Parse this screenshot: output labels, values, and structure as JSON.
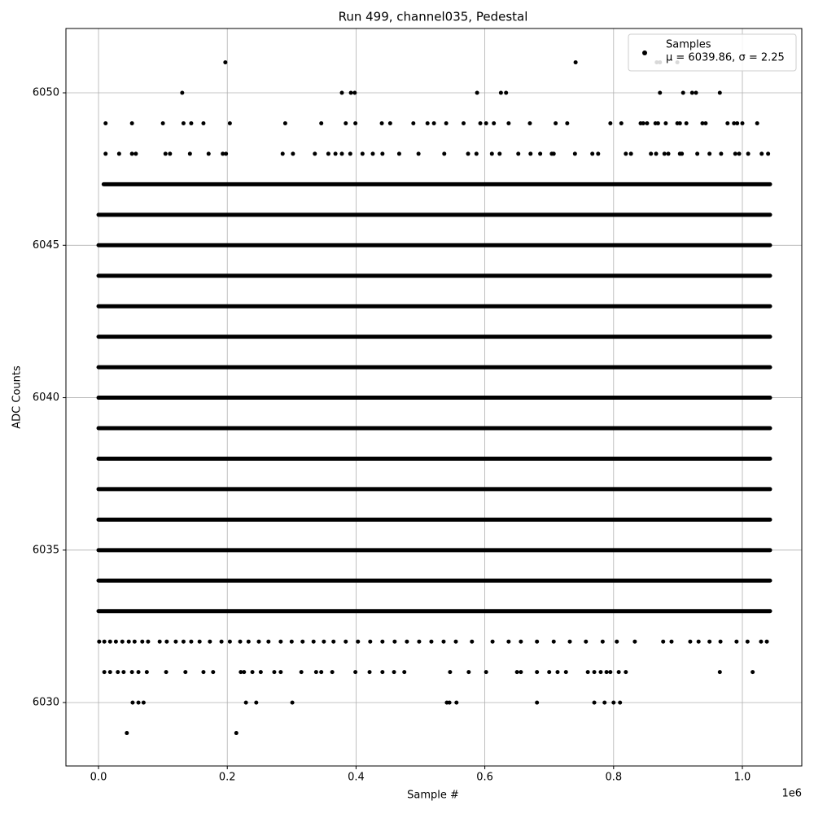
{
  "chart_data": {
    "type": "scatter",
    "title": "Run 499, channel035, Pedestal",
    "xlabel": "Sample #",
    "ylabel": "ADC Counts",
    "x_offset_label": "1e6",
    "xlim": [
      -0.0506,
      1.0923
    ],
    "ylim": [
      6027.92,
      6052.11
    ],
    "xticks": [
      {
        "value": 0,
        "label": "0.0"
      },
      0.2,
      0.4,
      0.6,
      0.8,
      {
        "value": 1,
        "label": "1.0"
      }
    ],
    "yticks": [
      6030,
      6035,
      6040,
      6045,
      6050
    ],
    "grid": true,
    "legend": "upper right",
    "series": [
      {
        "name": "Samples",
        "stats_label": "μ = 6039.86, σ = 2.25",
        "color": "#000000",
        "bands": [
          {
            "y": 6047,
            "x": [
              0.008,
              1.043
            ]
          },
          {
            "y": 6046,
            "x": [
              0,
              1.043
            ]
          },
          {
            "y": 6045,
            "x": [
              0,
              1.043
            ]
          },
          {
            "y": 6044,
            "x": [
              0,
              1.043
            ]
          },
          {
            "y": 6043,
            "x": [
              0,
              1.043
            ]
          },
          {
            "y": 6042,
            "x": [
              0,
              1.043
            ]
          },
          {
            "y": 6041,
            "x": [
              0,
              1.043
            ]
          },
          {
            "y": 6040,
            "x": [
              0,
              1.043
            ]
          },
          {
            "y": 6039,
            "x": [
              0,
              1.043
            ]
          },
          {
            "y": 6038,
            "x": [
              0,
              1.043
            ]
          },
          {
            "y": 6037,
            "x": [
              0,
              1.043
            ]
          },
          {
            "y": 6036,
            "x": [
              0,
              1.043
            ]
          },
          {
            "y": 6035,
            "x": [
              0,
              1.043
            ]
          },
          {
            "y": 6034,
            "x": [
              0,
              1.043
            ]
          },
          {
            "y": 6033,
            "x": [
              0,
              1.043
            ]
          }
        ],
        "points": [
          {
            "y": 6051,
            "x": [
              0.197,
              0.741,
              0.867,
              0.872,
              0.899
            ]
          },
          {
            "y": 6050,
            "x": [
              0.13,
              0.378,
              0.392,
              0.398,
              0.588,
              0.625,
              0.633,
              0.872,
              0.908,
              0.922,
              0.928,
              0.965
            ]
          },
          {
            "y": 6049,
            "x": [
              0.011,
              0.052,
              0.1,
              0.132,
              0.144,
              0.163,
              0.204,
              0.29,
              0.346,
              0.384,
              0.399,
              0.44,
              0.453,
              0.489,
              0.511,
              0.521,
              0.54,
              0.567,
              0.593,
              0.602,
              0.614,
              0.637,
              0.67,
              0.71,
              0.728,
              0.795,
              0.812,
              0.842,
              0.846,
              0.852,
              0.865,
              0.869,
              0.881,
              0.899,
              0.903,
              0.913,
              0.938,
              0.943,
              0.977,
              0.987,
              0.992,
              1.0,
              1.023
            ]
          },
          {
            "y": 6048,
            "x": [
              0.011,
              0.032,
              0.052,
              0.058,
              0.104,
              0.111,
              0.142,
              0.171,
              0.193,
              0.198,
              0.286,
              0.302,
              0.336,
              0.357,
              0.368,
              0.378,
              0.391,
              0.41,
              0.426,
              0.441,
              0.467,
              0.497,
              0.537,
              0.574,
              0.587,
              0.611,
              0.623,
              0.652,
              0.671,
              0.686,
              0.704,
              0.707,
              0.74,
              0.767,
              0.776,
              0.819,
              0.827,
              0.858,
              0.866,
              0.879,
              0.885,
              0.903,
              0.906,
              0.93,
              0.949,
              0.967,
              0.989,
              0.995,
              1.009,
              1.03,
              1.04
            ]
          },
          {
            "y": 6032,
            "x": [
              0.001,
              0.009,
              0.018,
              0.027,
              0.037,
              0.047,
              0.056,
              0.068,
              0.077,
              0.095,
              0.106,
              0.12,
              0.132,
              0.144,
              0.157,
              0.173,
              0.191,
              0.204,
              0.22,
              0.233,
              0.249,
              0.264,
              0.283,
              0.3,
              0.317,
              0.334,
              0.35,
              0.365,
              0.384,
              0.403,
              0.422,
              0.441,
              0.46,
              0.479,
              0.498,
              0.517,
              0.536,
              0.555,
              0.58,
              0.612,
              0.637,
              0.656,
              0.681,
              0.707,
              0.732,
              0.757,
              0.783,
              0.805,
              0.833,
              0.877,
              0.89,
              0.919,
              0.932,
              0.949,
              0.966,
              0.991,
              1.008,
              1.029,
              1.038
            ]
          },
          {
            "y": 6031,
            "x": [
              0.009,
              0.018,
              0.03,
              0.039,
              0.052,
              0.062,
              0.075,
              0.105,
              0.135,
              0.163,
              0.178,
              0.221,
              0.226,
              0.239,
              0.252,
              0.273,
              0.283,
              0.315,
              0.338,
              0.346,
              0.363,
              0.399,
              0.421,
              0.441,
              0.459,
              0.475,
              0.546,
              0.575,
              0.602,
              0.65,
              0.656,
              0.681,
              0.7,
              0.713,
              0.726,
              0.76,
              0.77,
              0.78,
              0.789,
              0.795,
              0.808,
              0.819,
              0.965,
              1.016
            ]
          },
          {
            "y": 6030,
            "x": [
              0.053,
              0.062,
              0.07,
              0.229,
              0.245,
              0.301,
              0.541,
              0.545,
              0.556,
              0.681,
              0.77,
              0.786,
              0.8,
              0.81
            ]
          },
          {
            "y": 6029,
            "x": [
              0.044,
              0.214
            ]
          }
        ]
      }
    ]
  }
}
